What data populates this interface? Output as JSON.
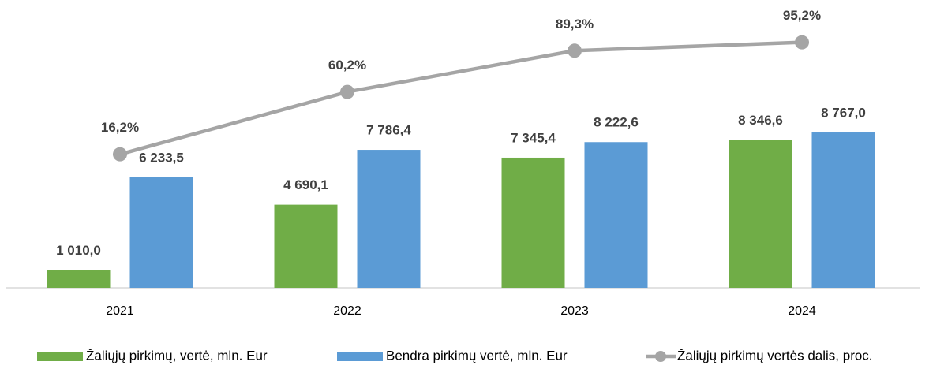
{
  "chart_data": {
    "type": "bar_line",
    "categories": [
      "2021",
      "2022",
      "2023",
      "2024"
    ],
    "series": [
      {
        "name": "Žaliųjų pirkimų, vertė, mln. Eur",
        "type": "bar",
        "color": "#70ad47",
        "values": [
          1010.0,
          4690.1,
          7345.4,
          8346.6
        ],
        "value_labels": [
          "1 010,0",
          "4 690,1",
          "7 345,4",
          "8 346,6"
        ]
      },
      {
        "name": "Bendra pirkimų vertė, mln. Eur",
        "type": "bar",
        "color": "#5b9bd5",
        "values": [
          6233.5,
          7786.4,
          8222.6,
          8767.0
        ],
        "value_labels": [
          "6 233,5",
          "7 786,4",
          "8 222,6",
          "8 767,0"
        ]
      },
      {
        "name": "Žaliųjų pirkimų vertės dalis, proc.",
        "type": "line",
        "axis": "y2",
        "color": "#a5a5a5",
        "values": [
          16.2,
          60.2,
          89.3,
          95.2
        ],
        "value_labels": [
          "16,2%",
          "60,2%",
          "89,3%",
          "95,2%"
        ]
      }
    ],
    "ylim": [
      0,
      16000
    ],
    "y2lim": [
      -78,
      122
    ],
    "legend": "bottom"
  }
}
